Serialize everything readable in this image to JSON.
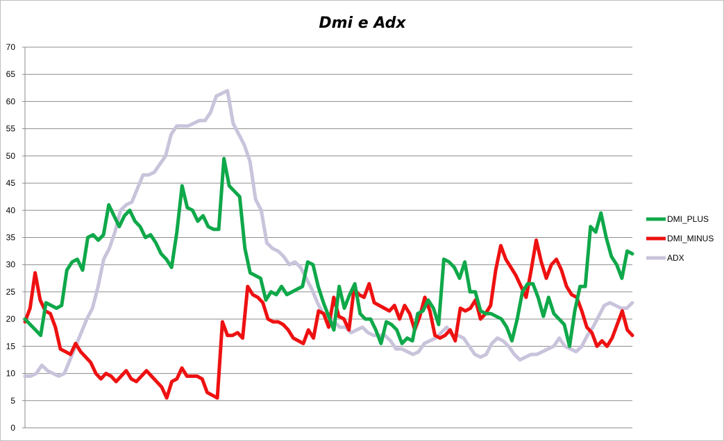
{
  "chart_data": {
    "type": "line",
    "title": "Dmi e Adx",
    "xlabel": "",
    "ylabel": "",
    "ylim": [
      0,
      70
    ],
    "yticks": [
      0,
      5,
      10,
      15,
      20,
      25,
      30,
      35,
      40,
      45,
      50,
      55,
      60,
      65,
      70
    ],
    "grid": true,
    "legend_position": "right",
    "series": [
      {
        "name": "DMI_PLUS",
        "color": "#0fa84a",
        "values": [
          20,
          19,
          18,
          17,
          23,
          22.5,
          22,
          22.5,
          29,
          30.5,
          31,
          29,
          35,
          35.5,
          34.5,
          35.5,
          41,
          39,
          37,
          39,
          40,
          38,
          37,
          35,
          35.5,
          34,
          32,
          31,
          29.5,
          36,
          44.5,
          40.5,
          40,
          38,
          39,
          37,
          36.5,
          36.5,
          49.5,
          44.5,
          43.5,
          42.5,
          33,
          28.5,
          28,
          27.5,
          23.5,
          25,
          24.5,
          26,
          24.5,
          25,
          25.5,
          26,
          30.5,
          30,
          26,
          23,
          20.5,
          18,
          26,
          22,
          24.5,
          26.5,
          21,
          20,
          20,
          18,
          15.5,
          19.5,
          19,
          18,
          15.5,
          16.5,
          16,
          21,
          21.5,
          23.5,
          22,
          19,
          31,
          30.5,
          29.5,
          27.5,
          30.5,
          25,
          25,
          21.5,
          21,
          21,
          20.5,
          20,
          18.5,
          16,
          20,
          25,
          26.5,
          26.5,
          24,
          20.5,
          24,
          21,
          20,
          19,
          15,
          21.5,
          26,
          26,
          37,
          36,
          39.5,
          35,
          31.5,
          30,
          27.5,
          32.5,
          32
        ]
      },
      {
        "name": "DMI_MINUS",
        "color": "#ee1111",
        "values": [
          19.5,
          22,
          28.5,
          23.5,
          21.5,
          21,
          18.5,
          14.5,
          14,
          13.5,
          15.5,
          14,
          13,
          12,
          10,
          9,
          10,
          9.5,
          8.5,
          9.5,
          10.5,
          9,
          8.5,
          9.5,
          10.5,
          9.5,
          8.5,
          7.5,
          5.5,
          8.5,
          9,
          11,
          9.5,
          9.5,
          9.5,
          9,
          6.5,
          6,
          5.5,
          19.5,
          17,
          17,
          17.5,
          16.5,
          26,
          24.5,
          24,
          23,
          20,
          19.5,
          19.5,
          19,
          18,
          16.5,
          16,
          15.5,
          18,
          16.5,
          21.5,
          21,
          18.5,
          24,
          20.5,
          20,
          18,
          25.5,
          24.5,
          24,
          26.5,
          23,
          22.5,
          22,
          21.5,
          22.5,
          20,
          22.5,
          21,
          18,
          20.5,
          24,
          21.5,
          17,
          16.5,
          17,
          18,
          16,
          22,
          21.5,
          22,
          23.5,
          20,
          21,
          22.5,
          29,
          33.5,
          31,
          29.5,
          28,
          26,
          24,
          29,
          34.5,
          30.5,
          27.5,
          30,
          31,
          29,
          26,
          24.5,
          24,
          21.5,
          18.5,
          17.5,
          15,
          16,
          15,
          16.5,
          19,
          21.5,
          18,
          17
        ]
      },
      {
        "name": "ADX",
        "color": "#c9c3db",
        "values": [
          9.5,
          9.5,
          10,
          11.5,
          10.5,
          10,
          9.5,
          10,
          12.5,
          15,
          17.5,
          20,
          22,
          26,
          31,
          33,
          36,
          40,
          41,
          41.5,
          44,
          46.5,
          46.5,
          47,
          48.5,
          50,
          54,
          55.5,
          55.5,
          55.5,
          56,
          56.5,
          56.5,
          58,
          61,
          61.5,
          62,
          56,
          54,
          52,
          49,
          42,
          40,
          34,
          33,
          32.5,
          31.5,
          30,
          30.5,
          29.5,
          27.5,
          25.5,
          23,
          21,
          20.5,
          19.5,
          18.5,
          18.5,
          17.5,
          18,
          18.5,
          17.5,
          17,
          17,
          17,
          16,
          14.5,
          14.5,
          14,
          13.5,
          14,
          15.5,
          16,
          16.5,
          17.5,
          18.5,
          17,
          17,
          16.5,
          15,
          13.5,
          13,
          13.5,
          15.5,
          16.5,
          16,
          15,
          13.5,
          12.5,
          13,
          13.5,
          13.5,
          14,
          14.5,
          15,
          16.5,
          15,
          14.5,
          14,
          15,
          17,
          18.5,
          20.5,
          22.5,
          23,
          22.5,
          22,
          22,
          23
        ]
      }
    ]
  }
}
